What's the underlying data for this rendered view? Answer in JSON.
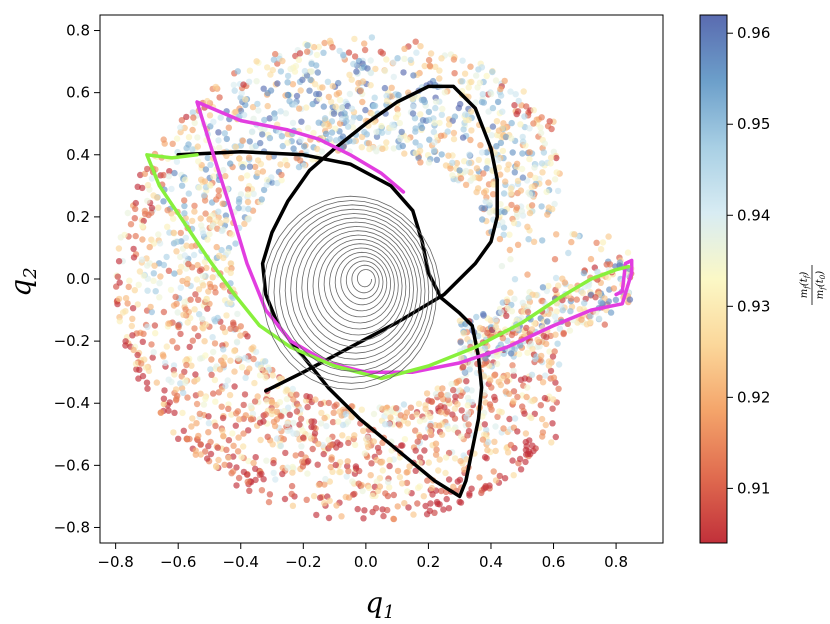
{
  "chart_data": {
    "type": "scatter",
    "title": "",
    "xlabel": "q",
    "xlabel_sub": "1",
    "ylabel": "q",
    "ylabel_sub": "2",
    "xlim": [
      -0.85,
      0.95
    ],
    "ylim": [
      -0.85,
      0.85
    ],
    "xticks": [
      -0.8,
      -0.6,
      -0.4,
      -0.2,
      0.0,
      0.2,
      0.4,
      0.6,
      0.8
    ],
    "xtick_labels": [
      "−0.8",
      "−0.6",
      "−0.4",
      "−0.2",
      "0.0",
      "0.2",
      "0.4",
      "0.6",
      "0.8"
    ],
    "yticks": [
      0.8,
      0.6,
      0.4,
      0.2,
      0.0,
      -0.2,
      -0.4,
      -0.6,
      -0.8
    ],
    "ytick_labels": [
      "0.8",
      "0.6",
      "0.4",
      "0.2",
      "0.0",
      "−0.2",
      "−0.4",
      "−0.6",
      "−0.8"
    ],
    "colorbar": {
      "label_num": "m",
      "label_num_sub": "f",
      "label_num_arg": "(t",
      "label_num_arg_sub": "f",
      "label_den": "m",
      "label_den_sub": "f",
      "label_den_arg": "(t",
      "label_den_arg_sub": "0",
      "range": [
        0.904,
        0.962
      ],
      "ticks": [
        0.96,
        0.95,
        0.94,
        0.93,
        0.92,
        0.91
      ],
      "tick_labels": [
        "0.96",
        "0.95",
        "0.94",
        "0.93",
        "0.92",
        "0.91"
      ],
      "colormap": [
        "#c1303a",
        "#e06b4f",
        "#f4a46a",
        "#fbd79a",
        "#fbf8c6",
        "#d8ecf3",
        "#a8cfe4",
        "#6c9fca",
        "#5a6bb0"
      ]
    },
    "series": [
      {
        "name": "black-trajectory",
        "color": "#000000",
        "points": [
          [
            -0.6,
            0.4
          ],
          [
            -0.4,
            0.41
          ],
          [
            -0.2,
            0.4
          ],
          [
            -0.05,
            0.37
          ],
          [
            0.08,
            0.3
          ],
          [
            0.15,
            0.22
          ],
          [
            0.18,
            0.12
          ],
          [
            0.2,
            0.02
          ],
          [
            0.24,
            -0.06
          ],
          [
            0.3,
            -0.11
          ],
          [
            0.34,
            -0.15
          ],
          [
            0.36,
            -0.25
          ],
          [
            0.37,
            -0.35
          ],
          [
            0.36,
            -0.45
          ],
          [
            0.34,
            -0.55
          ],
          [
            0.32,
            -0.65
          ],
          [
            0.3,
            -0.7
          ],
          [
            0.22,
            -0.65
          ],
          [
            0.1,
            -0.55
          ],
          [
            -0.02,
            -0.45
          ],
          [
            -0.12,
            -0.35
          ],
          [
            -0.2,
            -0.25
          ],
          [
            -0.28,
            -0.15
          ],
          [
            -0.32,
            -0.05
          ],
          [
            -0.33,
            0.05
          ],
          [
            -0.3,
            0.15
          ],
          [
            -0.25,
            0.25
          ],
          [
            -0.18,
            0.35
          ],
          [
            -0.1,
            0.42
          ],
          [
            0.0,
            0.5
          ],
          [
            0.1,
            0.57
          ],
          [
            0.2,
            0.62
          ],
          [
            0.28,
            0.62
          ],
          [
            0.35,
            0.55
          ],
          [
            0.4,
            0.42
          ],
          [
            0.42,
            0.32
          ],
          [
            0.42,
            0.2
          ],
          [
            0.4,
            0.12
          ],
          [
            0.35,
            0.05
          ],
          [
            0.25,
            -0.05
          ],
          [
            0.1,
            -0.14
          ],
          [
            -0.05,
            -0.22
          ],
          [
            -0.2,
            -0.3
          ],
          [
            -0.32,
            -0.36
          ]
        ]
      },
      {
        "name": "magenta-trajectory",
        "color": "#e23de0",
        "points": [
          [
            0.12,
            0.28
          ],
          [
            0.05,
            0.34
          ],
          [
            -0.05,
            0.4
          ],
          [
            -0.15,
            0.45
          ],
          [
            -0.25,
            0.48
          ],
          [
            -0.4,
            0.51
          ],
          [
            -0.54,
            0.57
          ],
          [
            -0.5,
            0.44
          ],
          [
            -0.44,
            0.25
          ],
          [
            -0.38,
            0.05
          ],
          [
            -0.32,
            -0.1
          ],
          [
            -0.24,
            -0.2
          ],
          [
            -0.12,
            -0.27
          ],
          [
            0.0,
            -0.3
          ],
          [
            0.15,
            -0.3
          ],
          [
            0.3,
            -0.27
          ],
          [
            0.45,
            -0.22
          ],
          [
            0.6,
            -0.15
          ],
          [
            0.72,
            -0.1
          ],
          [
            0.82,
            -0.08
          ],
          [
            0.85,
            0.02
          ],
          [
            0.85,
            0.06
          ],
          [
            0.83,
            0.05
          ],
          [
            0.82,
            -0.04
          ],
          [
            0.8,
            -0.05
          ]
        ]
      },
      {
        "name": "green-trajectory",
        "color": "#88f03c",
        "points": [
          [
            -0.54,
            0.4
          ],
          [
            -0.62,
            0.39
          ],
          [
            -0.7,
            0.4
          ],
          [
            -0.66,
            0.3
          ],
          [
            -0.58,
            0.18
          ],
          [
            -0.5,
            0.06
          ],
          [
            -0.42,
            -0.05
          ],
          [
            -0.34,
            -0.15
          ],
          [
            -0.24,
            -0.22
          ],
          [
            -0.1,
            -0.28
          ],
          [
            0.05,
            -0.32
          ],
          [
            0.2,
            -0.28
          ],
          [
            0.35,
            -0.22
          ],
          [
            0.5,
            -0.14
          ],
          [
            0.62,
            -0.06
          ],
          [
            0.72,
            0.0
          ],
          [
            0.8,
            0.03
          ],
          [
            0.84,
            0.04
          ]
        ]
      },
      {
        "name": "gray-spiral",
        "color": "#666666",
        "shape": "spiral",
        "center": [
          0.0,
          0.0
        ],
        "max_radius": 0.3,
        "turns": 18
      }
    ]
  }
}
